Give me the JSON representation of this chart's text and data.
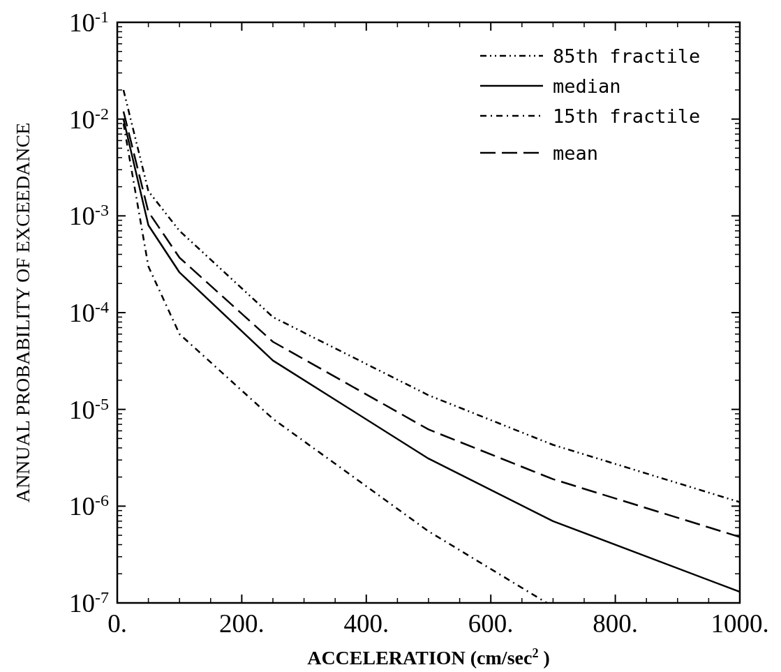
{
  "chart_data": {
    "type": "line",
    "xlabel": "ACCELERATION  (cm/sec$^{2}$ )",
    "ylabel": "ANNUAL PROBABILITY OF EXCEEDANCE",
    "log": "y",
    "xlim": [
      0,
      1000
    ],
    "ylim": [
      1e-07,
      0.1
    ],
    "xticks": [
      {
        "value": 0,
        "label": "0."
      },
      {
        "value": 200,
        "label": "200."
      },
      {
        "value": 400,
        "label": "400."
      },
      {
        "value": 600,
        "label": "600."
      },
      {
        "value": 800,
        "label": "800."
      },
      {
        "value": 1000,
        "label": "1000."
      }
    ],
    "yticks": [
      {
        "value": 1e-07,
        "label": "10$^{-7}$"
      },
      {
        "value": 1e-06,
        "label": "10$^{-6}$"
      },
      {
        "value": 1e-05,
        "label": "10$^{-5}$"
      },
      {
        "value": 0.0001,
        "label": "10$^{-4}$"
      },
      {
        "value": 0.001,
        "label": "10$^{-3}$"
      },
      {
        "value": 0.01,
        "label": "10$^{-2}$"
      },
      {
        "value": 0.1,
        "label": "10$^{-1}$"
      }
    ],
    "legend": "top right",
    "grid": false,
    "series": [
      {
        "name": "85th fractile",
        "color": "#000000",
        "line_style": "dashdotdot",
        "x": [
          10,
          50,
          100,
          250,
          500,
          700,
          1000
        ],
        "values": [
          0.02,
          0.0018,
          0.0007,
          9e-05,
          1.4e-05,
          4.3e-06,
          1.1e-06
        ]
      },
      {
        "name": "median",
        "color": "#000000",
        "line_style": "solid",
        "x": [
          10,
          50,
          100,
          250,
          500,
          700,
          1000
        ],
        "values": [
          0.01,
          0.0008,
          0.00026,
          3.2e-05,
          3.1e-06,
          7e-07,
          1.3e-07
        ]
      },
      {
        "name": "15th fractile",
        "color": "#000000",
        "line_style": "dashdot",
        "x": [
          10,
          50,
          100,
          250,
          500,
          690
        ],
        "values": [
          0.009,
          0.0003,
          6e-05,
          8e-06,
          5.5e-07,
          1e-07
        ]
      },
      {
        "name": "mean",
        "color": "#000000",
        "line_style": "dashed",
        "x": [
          10,
          50,
          100,
          250,
          500,
          700,
          1000
        ],
        "values": [
          0.012,
          0.0011,
          0.00037,
          5e-05,
          6.2e-06,
          1.9e-06,
          4.8e-07
        ]
      }
    ]
  }
}
